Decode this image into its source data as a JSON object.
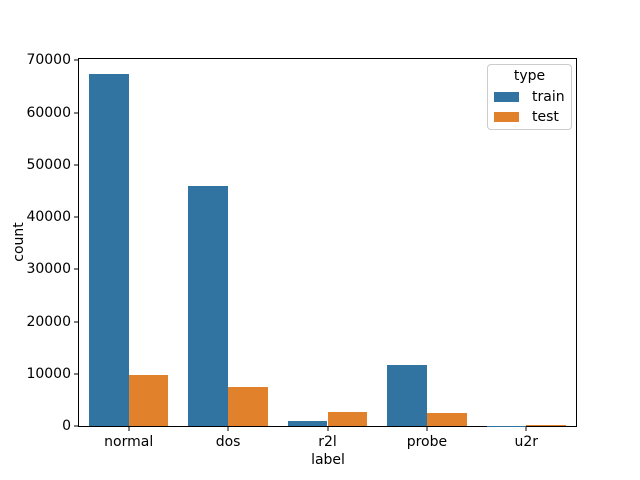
{
  "chart_data": {
    "type": "bar",
    "xlabel": "label",
    "ylabel": "count",
    "categories": [
      "normal",
      "dos",
      "r2l",
      "probe",
      "u2r"
    ],
    "series": [
      {
        "name": "train",
        "color": "#3274a1",
        "values": [
          67343,
          45927,
          995,
          11656,
          52
        ]
      },
      {
        "name": "test",
        "color": "#e1812c",
        "values": [
          9711,
          7458,
          2754,
          2421,
          200
        ]
      }
    ],
    "ylim": [
      0,
      70250
    ],
    "yticks": [
      0,
      10000,
      20000,
      30000,
      40000,
      50000,
      60000,
      70000
    ],
    "grid": false,
    "legend": {
      "title": "type",
      "position": "upper right"
    },
    "colors": {
      "spine": "#000000",
      "legend_border": "#cccccc",
      "background": "#ffffff"
    }
  }
}
